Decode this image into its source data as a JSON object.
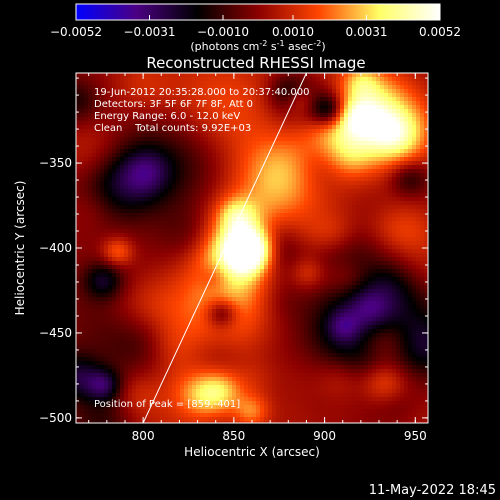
{
  "chart_data": {
    "type": "heatmap",
    "title": "Reconstructed RHESSI Image",
    "xlabel": "Heliocentric X (arcsec)",
    "ylabel": "Heliocentric Y (arcsec)",
    "xlim": [
      763,
      957
    ],
    "ylim": [
      -503,
      -297
    ],
    "x_ticks": [
      800,
      850,
      900,
      950
    ],
    "y_ticks": [
      -350,
      -400,
      -450,
      -500
    ],
    "grid": false,
    "colorbar": {
      "range": [
        -0.0052,
        0.0052
      ],
      "tick_values": [
        -0.0052,
        -0.0031,
        -0.001,
        0.001,
        0.0031,
        0.0052
      ],
      "tick_labels": [
        "-0.0052",
        "-0.0031",
        "-0.0010",
        "0.0010",
        "0.0031",
        "0.0052"
      ],
      "units_label": "(photons cm",
      "units_exp1": "-2",
      "units_mid": " s",
      "units_exp2": "-1",
      "units_mid2": " asec",
      "units_exp3": "-2",
      "units_end": ")",
      "colormap": [
        "#0000ff",
        "#4b0082",
        "#000000",
        "#8b0000",
        "#ff4500",
        "#ffff66",
        "#ffffff"
      ]
    },
    "annotations": [
      "19-Jun-2012 20:35:28.000 to 20:37:40.000",
      "Detectors: 3F 5F 6F 7F 8F, Att 0",
      "Energy Range: 6.0 - 12.0 keV",
      "Clean    Total counts: 9.92E+03"
    ],
    "peak_label": "Position of Peak = [859,-401]",
    "peak": [
      859,
      -401
    ],
    "limb_line": [
      [
        800,
        -503
      ],
      [
        890,
        -297
      ]
    ]
  },
  "footer": {
    "date": "11-May-2022 18:45"
  }
}
